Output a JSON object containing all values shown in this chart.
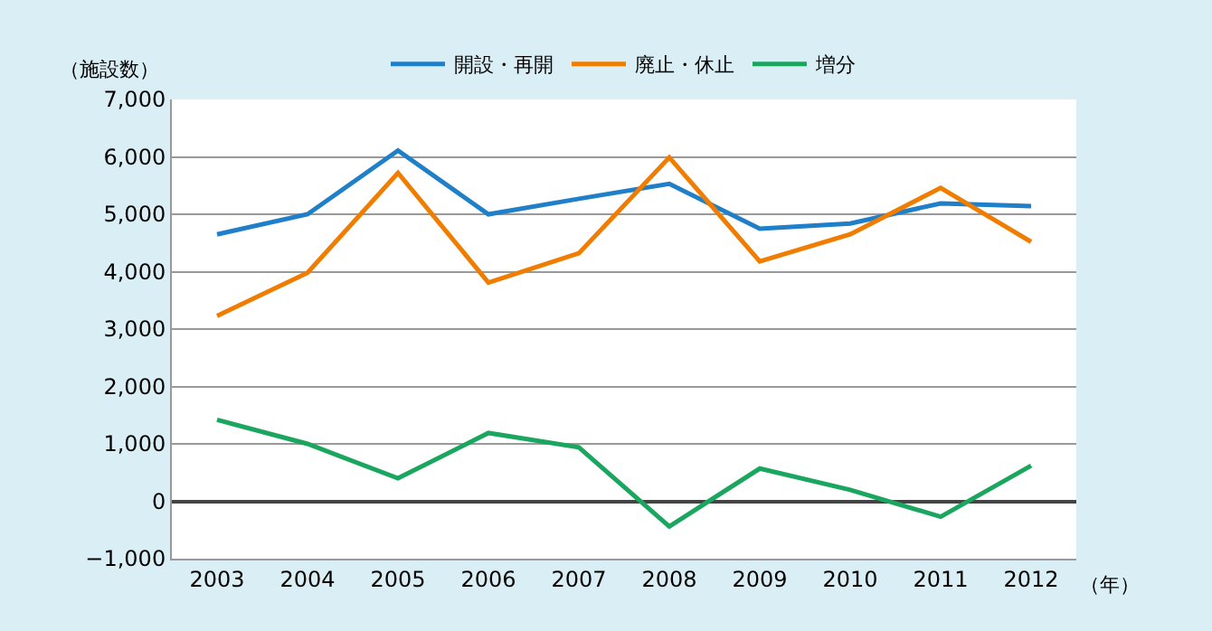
{
  "chart_data": {
    "type": "line",
    "categories": [
      "2003",
      "2004",
      "2005",
      "2006",
      "2007",
      "2008",
      "2009",
      "2010",
      "2011",
      "2012"
    ],
    "series": [
      {
        "name": "開設・再開",
        "color": "#1f7fc8",
        "values": [
          4650,
          5000,
          6110,
          5000,
          5270,
          5530,
          4750,
          4840,
          5190,
          5140
        ]
      },
      {
        "name": "廃止・休止",
        "color": "#f07c00",
        "values": [
          3230,
          3980,
          5720,
          3810,
          4320,
          5990,
          4180,
          4650,
          5460,
          4520
        ]
      },
      {
        "name": "増分",
        "color": "#1aa65e",
        "values": [
          1420,
          1000,
          400,
          1190,
          940,
          -440,
          570,
          200,
          -270,
          620
        ]
      }
    ],
    "ylabel": "（施設数）",
    "xlabel": "（年）",
    "ylim": [
      -1000,
      7000
    ],
    "yticks": [
      {
        "value": -1000,
        "label": "−1,000"
      },
      0,
      {
        "value": 1000,
        "label": "1,000"
      },
      {
        "value": 2000,
        "label": "2,000"
      },
      {
        "value": 3000,
        "label": "3,000"
      },
      {
        "value": 4000,
        "label": "4,000"
      },
      {
        "value": 5000,
        "label": "5,000"
      },
      {
        "value": 6000,
        "label": "6,000"
      },
      {
        "value": 7000,
        "label": "7,000"
      }
    ],
    "grid": "y",
    "legend": "top",
    "marker": "none",
    "line_style": "solid"
  }
}
